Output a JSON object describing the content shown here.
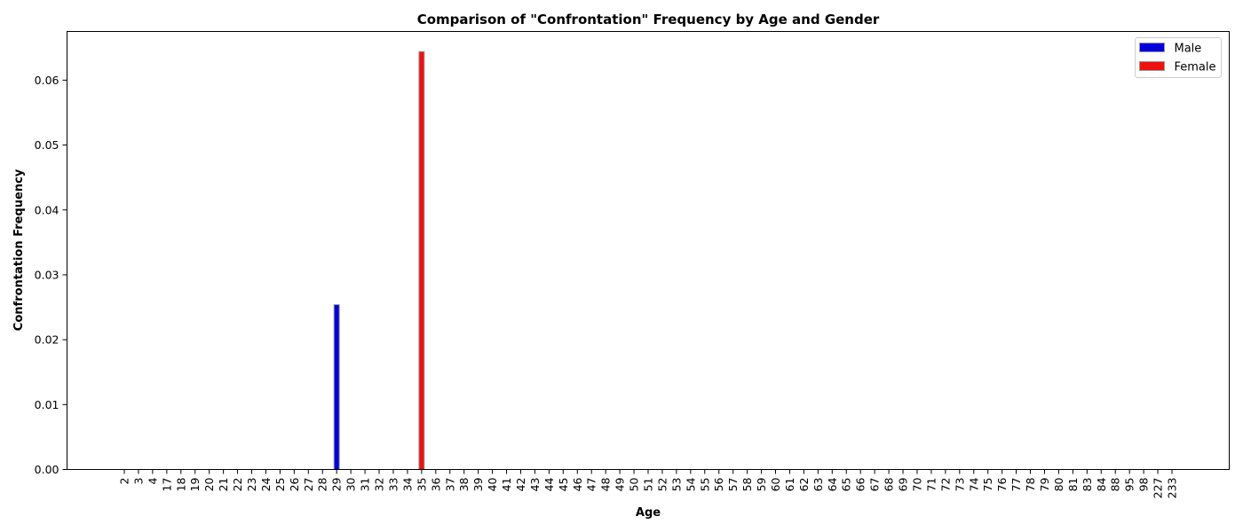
{
  "chart_data": {
    "type": "bar",
    "title": "Comparison of \"Confrontation\" Frequency by Age and Gender",
    "xlabel": "Age",
    "ylabel": "Confrontation Frequency",
    "categories": [
      "2",
      "3",
      "4",
      "17",
      "18",
      "19",
      "20",
      "21",
      "22",
      "23",
      "24",
      "25",
      "26",
      "27",
      "28",
      "29",
      "30",
      "31",
      "32",
      "33",
      "34",
      "35",
      "36",
      "37",
      "38",
      "39",
      "40",
      "41",
      "42",
      "43",
      "44",
      "45",
      "46",
      "47",
      "48",
      "49",
      "50",
      "51",
      "52",
      "53",
      "54",
      "55",
      "56",
      "57",
      "58",
      "59",
      "60",
      "61",
      "62",
      "63",
      "64",
      "65",
      "66",
      "67",
      "68",
      "69",
      "70",
      "71",
      "72",
      "73",
      "74",
      "75",
      "76",
      "77",
      "78",
      "79",
      "80",
      "81",
      "83",
      "84",
      "88",
      "95",
      "98",
      "227",
      "233"
    ],
    "series": [
      {
        "name": "Male",
        "color": "#0000dd",
        "values": [
          0,
          0,
          0,
          0,
          0,
          0,
          0,
          0,
          0,
          0,
          0,
          0,
          0,
          0,
          0,
          0.0254,
          0,
          0,
          0,
          0,
          0,
          0,
          0,
          0,
          0,
          0,
          0,
          0,
          0,
          0,
          0,
          0,
          0,
          0,
          0,
          0,
          0,
          0,
          0,
          0,
          0,
          0,
          0,
          0,
          0,
          0,
          0,
          0,
          0,
          0,
          0,
          0,
          0,
          0,
          0,
          0,
          0,
          0,
          0,
          0,
          0,
          0,
          0,
          0,
          0,
          0,
          0,
          0,
          0,
          0,
          0,
          0,
          0,
          0,
          0
        ]
      },
      {
        "name": "Female",
        "color": "#ee1111",
        "values": [
          0,
          0,
          0,
          0,
          0,
          0,
          0,
          0,
          0,
          0,
          0,
          0,
          0,
          0,
          0,
          0,
          0,
          0,
          0,
          0,
          0,
          0.0644,
          0,
          0,
          0,
          0,
          0,
          0,
          0,
          0,
          0,
          0,
          0,
          0,
          0,
          0,
          0,
          0,
          0,
          0,
          0,
          0,
          0,
          0,
          0,
          0,
          0,
          0,
          0,
          0,
          0,
          0,
          0,
          0,
          0,
          0,
          0,
          0,
          0,
          0,
          0,
          0,
          0,
          0,
          0,
          0,
          0,
          0,
          0,
          0,
          0,
          0,
          0,
          0,
          0
        ]
      }
    ],
    "ylim": [
      0,
      0.0675
    ],
    "yticks": [
      "0.00",
      "0.01",
      "0.02",
      "0.03",
      "0.04",
      "0.05",
      "0.06"
    ],
    "legend": "top-right",
    "grid": false
  }
}
